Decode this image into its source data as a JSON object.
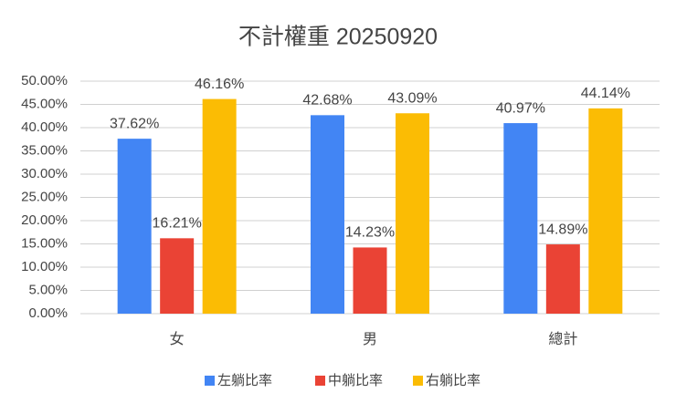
{
  "chart_data": {
    "type": "bar",
    "title": "不計權重 20250920",
    "categories": [
      "女",
      "男",
      "總計"
    ],
    "series": [
      {
        "name": "左躺比率",
        "color": "#4285f4",
        "values": [
          37.62,
          42.68,
          40.97
        ],
        "value_labels": [
          "37.62%",
          "42.68%",
          "40.97%"
        ]
      },
      {
        "name": "中躺比率",
        "color": "#ea4335",
        "values": [
          16.21,
          14.23,
          14.89
        ],
        "value_labels": [
          "16.21%",
          "14.23%",
          "14.89%"
        ]
      },
      {
        "name": "右躺比率",
        "color": "#fbbc04",
        "values": [
          46.16,
          43.09,
          44.14
        ],
        "value_labels": [
          "46.16%",
          "43.09%",
          "44.14%"
        ]
      }
    ],
    "ylim": [
      0,
      50
    ],
    "yticks": [
      {
        "value": 0,
        "label": "0.00%"
      },
      {
        "value": 5,
        "label": "5.00%"
      },
      {
        "value": 10,
        "label": "10.00%"
      },
      {
        "value": 15,
        "label": "15.00%"
      },
      {
        "value": 20,
        "label": "20.00%"
      },
      {
        "value": 25,
        "label": "25.00%"
      },
      {
        "value": 30,
        "label": "30.00%"
      },
      {
        "value": 35,
        "label": "35.00%"
      },
      {
        "value": 40,
        "label": "40.00%"
      },
      {
        "value": 45,
        "label": "45.00%"
      },
      {
        "value": 50,
        "label": "50.00%"
      }
    ],
    "grid": true,
    "legend": "bottom"
  }
}
